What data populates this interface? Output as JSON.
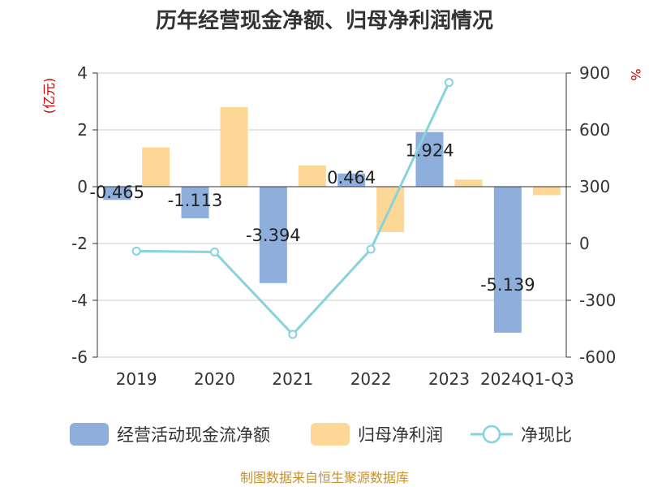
{
  "chart_data": {
    "type": "bar",
    "title": "历年经营现金净额、归母净利润情况",
    "categories": [
      "2019",
      "2020",
      "2021",
      "2022",
      "2023",
      "2024Q1-Q3"
    ],
    "y_left": {
      "label": "(亿元)",
      "range": [
        -6,
        4
      ],
      "ticks": [
        "4",
        "2",
        "0",
        "-2",
        "-4",
        "-6"
      ]
    },
    "y_right": {
      "label": "%",
      "range": [
        -600,
        900
      ],
      "ticks": [
        "900",
        "600",
        "300",
        "0",
        "-300",
        "-600"
      ]
    },
    "series": [
      {
        "name": "经营活动现金流净额",
        "type": "bar",
        "axis": "left",
        "color": "#8eaedc",
        "values": [
          -0.465,
          -1.113,
          -3.394,
          0.464,
          1.924,
          -5.139
        ],
        "labels": [
          "-0.465",
          "-1.113",
          "-3.394",
          "0.464",
          "1.924",
          "-5.139"
        ]
      },
      {
        "name": "归母净利润",
        "type": "bar",
        "axis": "left",
        "color": "#fdd796",
        "values": [
          1.38,
          2.8,
          0.75,
          -1.6,
          0.25,
          -0.3
        ]
      },
      {
        "name": "净现比",
        "type": "line",
        "axis": "right",
        "color": "#86d3dc",
        "values": [
          -40,
          -45,
          -480,
          -30,
          850,
          null
        ]
      }
    ],
    "grid": true,
    "legend_position": "bottom",
    "source": "制图数据来自恒生聚源数据库"
  }
}
